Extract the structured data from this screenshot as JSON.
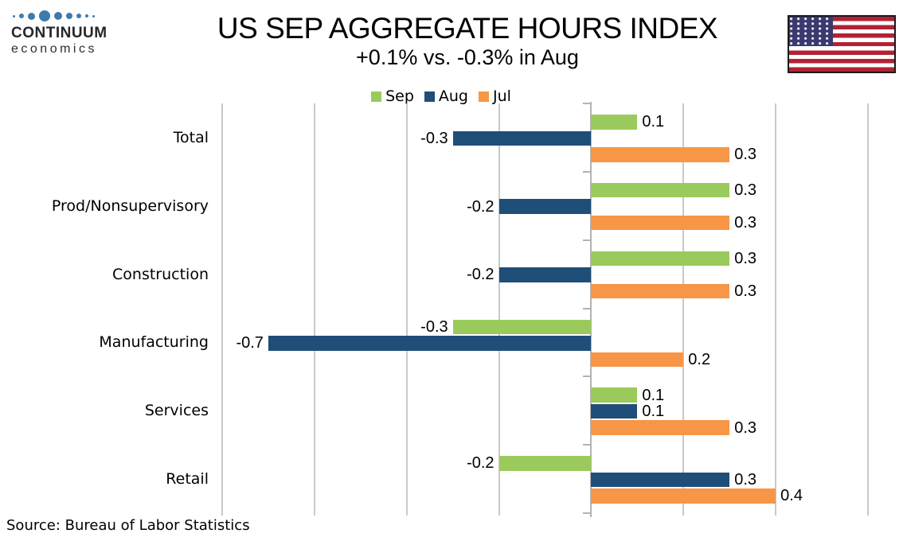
{
  "logo": {
    "wordmark": "CONTINUUM",
    "subtext": "economics"
  },
  "header": {
    "title": "US SEP AGGREGATE HOURS INDEX",
    "subtitle": "+0.1% vs. -0.3% in Aug"
  },
  "chart_data": {
    "type": "bar",
    "orientation": "horizontal",
    "title": "US SEP AGGREGATE HOURS INDEX",
    "subtitle": "+0.1% vs. -0.3% in Aug",
    "categories": [
      "Total",
      "Prod/Nonsupervisory",
      "Construction",
      "Manufacturing",
      "Services",
      "Retail"
    ],
    "series": [
      {
        "name": "Sep",
        "color": "#9bca5c",
        "values": [
          0.1,
          0.3,
          0.3,
          -0.3,
          0.1,
          -0.2
        ]
      },
      {
        "name": "Aug",
        "color": "#1f4e79",
        "values": [
          -0.3,
          -0.2,
          -0.2,
          -0.7,
          0.1,
          0.3
        ]
      },
      {
        "name": "Jul",
        "color": "#f79646",
        "values": [
          0.3,
          0.3,
          0.3,
          0.2,
          0.3,
          0.4
        ]
      }
    ],
    "xlim": [
      -0.8,
      0.6
    ],
    "grid_interval": 0.2,
    "grid": true,
    "legend_position": "top-center",
    "value_labels": true,
    "value_label_decimals": 1
  },
  "footer": {
    "source": "Source: Bureau of Labor Statistics"
  },
  "style": {
    "grid_color": "#c9c9c9",
    "axis_color": "#b3b3b3",
    "flag_red": "#b22234",
    "flag_blue": "#3a3970",
    "logo_dot_color": "#3e7bad"
  }
}
